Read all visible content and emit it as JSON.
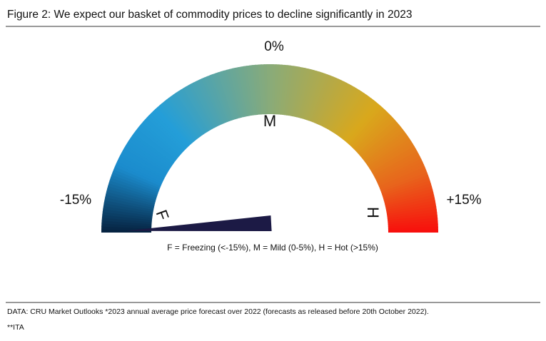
{
  "chart_data": {
    "type": "gauge",
    "title": "Figure 2: We expect our basket of commodity prices to decline significantly in 2023",
    "lim": [
      -15,
      15
    ],
    "ticks": [
      {
        "value": -15,
        "label": "-15%"
      },
      {
        "value": 0,
        "label": "0%"
      },
      {
        "value": 15,
        "label": "+15%"
      }
    ],
    "value": -15.5,
    "needle_color": "#1c1a45",
    "zones": [
      "F",
      "M",
      "H"
    ],
    "zone_note": "F = Freezing (<-15%), M = Mild (0-5%), H = Hot (>15%)",
    "source": "DATA: CRU Market Outlooks  *2023 annual average price forecast over 2022 (forecasts as released before 20th October 2022).",
    "footnote": "**ITA"
  }
}
